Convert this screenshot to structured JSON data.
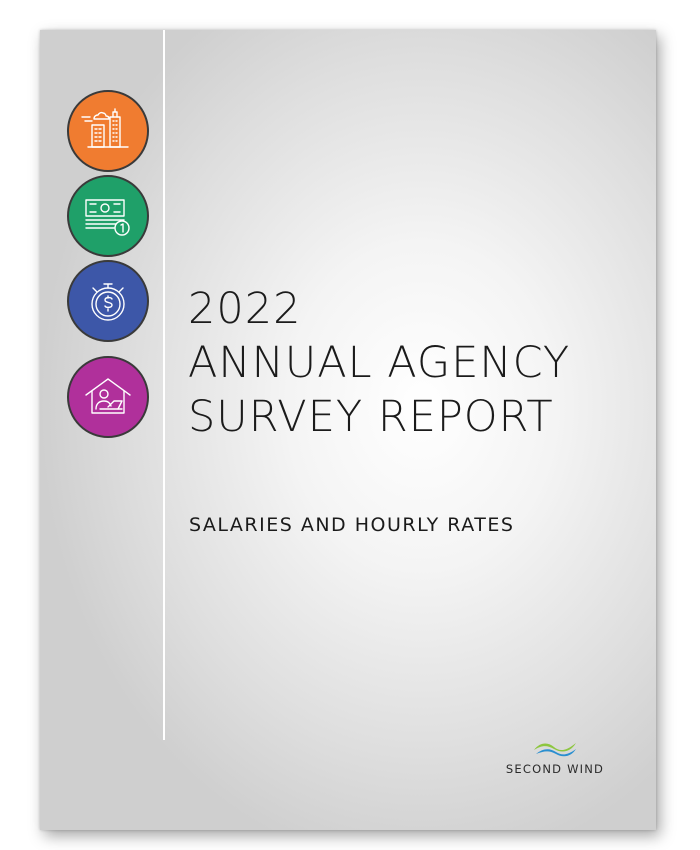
{
  "cover": {
    "title_lines": [
      "2022",
      "ANNUAL AGENCY",
      "SURVEY REPORT"
    ],
    "subtitle": "SALARIES AND HOURLY RATES",
    "logo_text": "SECOND WIND"
  },
  "icons": [
    {
      "name": "city-buildings-icon",
      "color": "#f07c30"
    },
    {
      "name": "money-stack-icon",
      "color": "#1fa069"
    },
    {
      "name": "stopwatch-dollar-icon",
      "color": "#3d57a8"
    },
    {
      "name": "home-office-icon",
      "color": "#b0309b"
    }
  ],
  "colors": {
    "logo_blue": "#2a8fd0",
    "logo_green": "#8dc63f",
    "page_background": "#e6e6e6",
    "text": "#1b1b1b"
  }
}
